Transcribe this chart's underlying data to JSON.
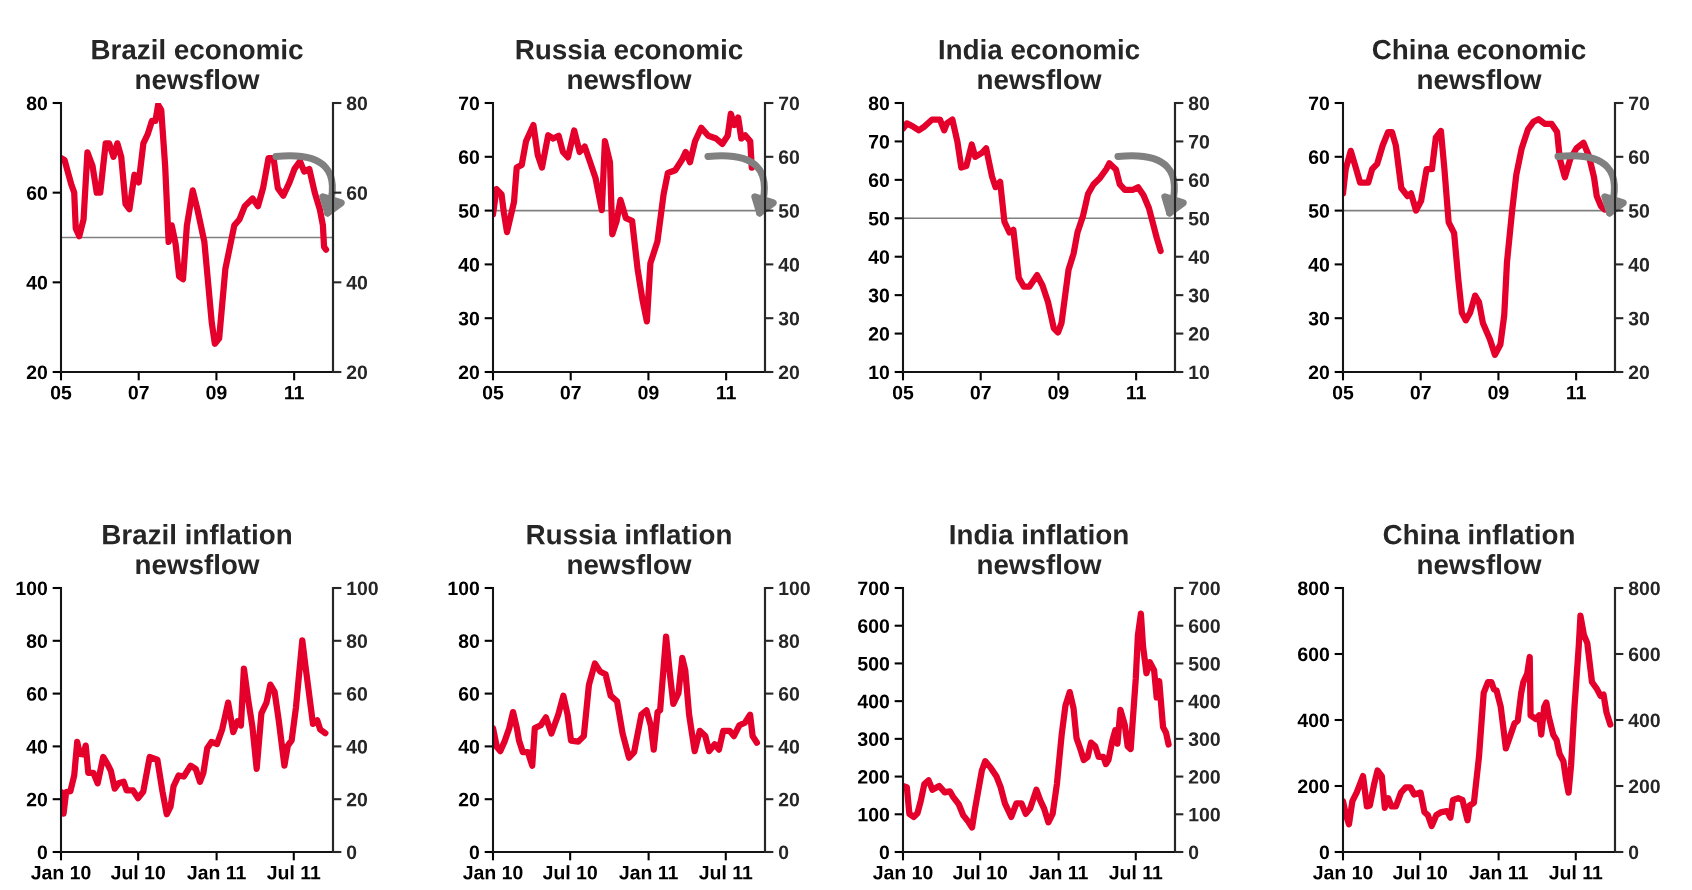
{
  "chart_data": [
    {
      "type": "line",
      "title": "Brazil economic newsflow",
      "x": [
        2005.0,
        2005.09,
        2005.27,
        2005.34,
        2005.38,
        2005.47,
        2005.58,
        2005.68,
        2005.81,
        2005.92,
        2006.01,
        2006.15,
        2006.24,
        2006.35,
        2006.45,
        2006.55,
        2006.66,
        2006.76,
        2006.89,
        2007.0,
        2007.12,
        2007.23,
        2007.34,
        2007.43,
        2007.5,
        2007.58,
        2007.68,
        2007.77,
        2007.85,
        2007.95,
        2008.04,
        2008.14,
        2008.24,
        2008.39,
        2008.51,
        2008.69,
        2008.88,
        2008.96,
        2009.07,
        2009.23,
        2009.46,
        2009.59,
        2009.73,
        2009.93,
        2010.07,
        2010.2,
        2010.34,
        2010.47,
        2010.58,
        2010.72,
        2010.88,
        2011.01,
        2011.15,
        2011.26,
        2011.39,
        2011.53,
        2011.66,
        2011.74,
        2011.77,
        2011.82
      ],
      "series": [
        {
          "color": "#e4002b",
          "values": [
            67.7,
            67.3,
            61.7,
            60,
            52,
            50.3,
            54,
            69,
            66,
            60,
            60,
            71,
            71,
            68,
            71,
            68,
            57.5,
            56.3,
            64,
            62.3,
            71,
            73,
            76,
            76,
            79.6,
            78.4,
            66,
            49,
            52.7,
            48.5,
            41.3,
            40.7,
            52.7,
            60.5,
            56.3,
            49,
            31,
            26.3,
            27.5,
            43,
            52.7,
            54,
            57,
            58.7,
            57,
            61,
            67.7,
            67.7,
            61,
            59.3,
            62.3,
            65.3,
            67,
            64.7,
            65.3,
            60,
            56.3,
            52.7,
            47.9,
            47.3
          ]
        }
      ],
      "xlim": [
        2005,
        2012
      ],
      "xticks": [
        {
          "value": 2005,
          "label": "05"
        },
        {
          "value": 2007,
          "label": "07"
        },
        {
          "value": 2009,
          "label": "09"
        },
        {
          "value": 2011,
          "label": "11"
        }
      ],
      "ylim": [
        20,
        80
      ],
      "yticks": [
        20,
        40,
        60,
        80
      ],
      "y2lim": [
        20,
        80
      ],
      "y2ticks": [
        20,
        40,
        60,
        80
      ],
      "ref_lines": [
        {
          "axis": "y",
          "value": 50,
          "color": "#808080"
        }
      ],
      "legend": false
    },
    {
      "type": "line",
      "title": "Russia economic newsflow",
      "x": [
        2005.0,
        2005.09,
        2005.22,
        2005.28,
        2005.36,
        2005.54,
        2005.61,
        2005.74,
        2005.85,
        2006.04,
        2006.15,
        2006.26,
        2006.42,
        2006.55,
        2006.69,
        2006.8,
        2006.93,
        2007.09,
        2007.23,
        2007.36,
        2007.5,
        2007.64,
        2007.8,
        2007.88,
        2008.01,
        2008.07,
        2008.18,
        2008.28,
        2008.42,
        2008.58,
        2008.72,
        2008.85,
        2008.96,
        2009.05,
        2009.23,
        2009.39,
        2009.5,
        2009.69,
        2009.86,
        2009.96,
        2010.07,
        2010.2,
        2010.36,
        2010.54,
        2010.74,
        2010.9,
        2011.04,
        2011.12,
        2011.21,
        2011.31,
        2011.39,
        2011.49,
        2011.62,
        2011.66
      ],
      "series": [
        {
          "color": "#e4002b",
          "values": [
            49.3,
            54,
            53,
            49.6,
            46,
            51.6,
            58,
            58.5,
            62.9,
            65.9,
            60.4,
            58,
            64,
            63.4,
            63.9,
            60.9,
            59.9,
            64.9,
            60.9,
            61.9,
            59,
            56,
            50.1,
            62.9,
            59,
            45.6,
            48,
            52,
            48.6,
            48.1,
            39.2,
            33.3,
            29.4,
            40.2,
            44.2,
            53,
            57,
            57.5,
            59.4,
            60.9,
            59,
            62.9,
            65.4,
            63.9,
            63.4,
            62.4,
            63.9,
            68,
            65.9,
            67.3,
            63.4,
            64,
            62.9,
            58
          ]
        }
      ],
      "xlim": [
        2005,
        2012
      ],
      "xticks": [
        {
          "value": 2005,
          "label": "05"
        },
        {
          "value": 2007,
          "label": "07"
        },
        {
          "value": 2009,
          "label": "09"
        },
        {
          "value": 2011,
          "label": "11"
        }
      ],
      "ylim": [
        20,
        70
      ],
      "yticks": [
        20,
        30,
        40,
        50,
        60,
        70
      ],
      "y2lim": [
        20,
        70
      ],
      "y2ticks": [
        20,
        30,
        40,
        50,
        60,
        70
      ],
      "ref_lines": [
        {
          "axis": "y",
          "value": 50,
          "color": "#808080"
        }
      ],
      "legend": false
    },
    {
      "type": "line",
      "title": "India economic newsflow",
      "x": [
        2005.0,
        2005.1,
        2005.27,
        2005.41,
        2005.54,
        2005.75,
        2005.95,
        2006.06,
        2006.13,
        2006.27,
        2006.4,
        2006.5,
        2006.63,
        2006.77,
        2006.86,
        2007.04,
        2007.14,
        2007.29,
        2007.38,
        2007.5,
        2007.61,
        2007.74,
        2007.84,
        2007.98,
        2008.11,
        2008.25,
        2008.45,
        2008.59,
        2008.73,
        2008.88,
        2008.99,
        2009.08,
        2009.26,
        2009.39,
        2009.49,
        2009.63,
        2009.76,
        2009.9,
        2010.07,
        2010.24,
        2010.31,
        2010.48,
        2010.58,
        2010.71,
        2010.92,
        2011.05,
        2011.19,
        2011.33,
        2011.44,
        2011.53,
        2011.63
      ],
      "series": [
        {
          "color": "#e4002b",
          "values": [
            73.3,
            74.7,
            73.8,
            72.9,
            73.8,
            75.7,
            75.7,
            72.9,
            74.7,
            75.7,
            69.9,
            63.2,
            63.6,
            69.2,
            66,
            67.1,
            68.2,
            60.9,
            58.1,
            59.5,
            49.1,
            46.3,
            47,
            34.5,
            32.2,
            32.2,
            35.2,
            32.5,
            28.3,
            21.4,
            20.3,
            22.8,
            36.6,
            40.8,
            46.3,
            50.5,
            56.3,
            58.8,
            60.5,
            62.9,
            64.3,
            62.7,
            58.8,
            57.4,
            57.4,
            58.1,
            56,
            52.6,
            48.4,
            44.9,
            41.5
          ]
        }
      ],
      "xlim": [
        2005,
        2012
      ],
      "xticks": [
        {
          "value": 2005,
          "label": "05"
        },
        {
          "value": 2007,
          "label": "07"
        },
        {
          "value": 2009,
          "label": "09"
        },
        {
          "value": 2011,
          "label": "11"
        }
      ],
      "ylim": [
        10,
        80
      ],
      "yticks": [
        10,
        20,
        30,
        40,
        50,
        60,
        70,
        80
      ],
      "y2lim": [
        10,
        80
      ],
      "y2ticks": [
        10,
        20,
        30,
        40,
        50,
        60,
        70,
        80
      ],
      "ref_lines": [
        {
          "axis": "y",
          "value": 50,
          "color": "#808080"
        }
      ],
      "legend": false
    },
    {
      "type": "line",
      "title": "China economic newsflow",
      "x": [
        2005.0,
        2005.07,
        2005.2,
        2005.34,
        2005.44,
        2005.65,
        2005.75,
        2005.88,
        2006.02,
        2006.16,
        2006.26,
        2006.36,
        2006.5,
        2006.66,
        2006.75,
        2006.88,
        2007.01,
        2007.15,
        2007.29,
        2007.39,
        2007.52,
        2007.61,
        2007.72,
        2007.86,
        2007.97,
        2008.06,
        2008.16,
        2008.27,
        2008.4,
        2008.5,
        2008.6,
        2008.78,
        2008.91,
        2009.05,
        2009.15,
        2009.22,
        2009.35,
        2009.46,
        2009.6,
        2009.76,
        2009.9,
        2010.03,
        2010.2,
        2010.37,
        2010.51,
        2010.58,
        2010.71,
        2010.85,
        2011.01,
        2011.19,
        2011.33,
        2011.46,
        2011.53,
        2011.64,
        2011.73
      ],
      "series": [
        {
          "color": "#e4002b",
          "values": [
            53.2,
            57.7,
            61.1,
            57.7,
            55.2,
            55.2,
            57.7,
            58.7,
            62.1,
            64.6,
            64.6,
            62.1,
            54.2,
            52.7,
            53.2,
            50,
            51.8,
            57.7,
            57.7,
            63.6,
            64.8,
            57.7,
            47.8,
            45.8,
            37,
            31,
            29.6,
            31,
            34.2,
            33,
            29.1,
            26.1,
            23.2,
            25.1,
            30.6,
            40.4,
            49.8,
            56.7,
            61.6,
            65.1,
            66.5,
            67,
            66.1,
            66.1,
            64.6,
            59.6,
            56.2,
            59.6,
            61.6,
            62.6,
            60.1,
            56.2,
            52.7,
            50.8,
            50.2
          ]
        }
      ],
      "xlim": [
        2005,
        2012
      ],
      "xticks": [
        {
          "value": 2005,
          "label": "05"
        },
        {
          "value": 2007,
          "label": "07"
        },
        {
          "value": 2009,
          "label": "09"
        },
        {
          "value": 2011,
          "label": "11"
        }
      ],
      "ylim": [
        20,
        70
      ],
      "yticks": [
        20,
        30,
        40,
        50,
        60,
        70
      ],
      "y2lim": [
        20,
        70
      ],
      "y2ticks": [
        20,
        30,
        40,
        50,
        60,
        70
      ],
      "ref_lines": [
        {
          "axis": "y",
          "value": 50,
          "color": "#808080"
        }
      ],
      "legend": false
    },
    {
      "type": "line",
      "title": "Brazil inflation newsflow",
      "x": [
        "2010-01-01",
        "2010-01-07",
        "2010-01-13",
        "2010-01-23",
        "2010-02-01",
        "2010-02-08",
        "2010-02-14",
        "2010-02-22",
        "2010-02-28",
        "2010-03-06",
        "2010-03-18",
        "2010-03-28",
        "2010-04-10",
        "2010-04-21",
        "2010-04-28",
        "2010-05-07",
        "2010-05-16",
        "2010-05-28",
        "2010-06-04",
        "2010-06-19",
        "2010-07-01",
        "2010-07-13",
        "2010-07-28",
        "2010-08-15",
        "2010-08-27",
        "2010-09-06",
        "2010-09-15",
        "2010-09-22",
        "2010-10-04",
        "2010-10-16",
        "2010-11-01",
        "2010-11-13",
        "2010-11-23",
        "2010-12-01",
        "2010-12-10",
        "2010-12-20",
        "2011-01-02",
        "2011-01-14",
        "2011-01-28",
        "2011-02-09",
        "2011-02-19",
        "2011-02-27",
        "2011-03-06",
        "2011-03-16",
        "2011-03-26",
        "2011-04-05",
        "2011-04-16",
        "2011-04-28",
        "2011-05-07",
        "2011-05-17",
        "2011-05-27",
        "2011-06-09",
        "2011-06-17",
        "2011-06-26",
        "2011-07-06",
        "2011-07-21",
        "2011-07-28",
        "2011-08-15",
        "2011-08-25",
        "2011-09-01",
        "2011-09-13"
      ],
      "series": [
        {
          "color": "#e4002b",
          "values": [
            22.7,
            14.5,
            22.7,
            23,
            29,
            41.7,
            37.2,
            37,
            40.3,
            30,
            30,
            26,
            36,
            33,
            30.7,
            24,
            26,
            26.6,
            23.3,
            23.3,
            20.4,
            22.9,
            36,
            35,
            22.9,
            14.3,
            17.2,
            24.9,
            29,
            28.6,
            32.7,
            31.5,
            26.6,
            30,
            39.3,
            41.7,
            40.9,
            46.4,
            56.6,
            45.4,
            49.5,
            47.9,
            69.5,
            57.7,
            47.4,
            31.5,
            52.5,
            56.6,
            63.4,
            60.7,
            49.5,
            32.7,
            40.3,
            42.3,
            54.6,
            80.2,
            71,
            48.5,
            49.9,
            46.4,
            45
          ]
        }
      ],
      "xlim": [
        "2010-01-01",
        "2011-10-01"
      ],
      "xticks": [
        {
          "value": "2010-01-01",
          "label": "Jan 10"
        },
        {
          "value": "2010-07-01",
          "label": "Jul 10"
        },
        {
          "value": "2011-01-01",
          "label": "Jan 11"
        },
        {
          "value": "2011-07-01",
          "label": "Jul 11"
        }
      ],
      "ylim": [
        0,
        100
      ],
      "yticks": [
        0,
        20,
        40,
        60,
        80,
        100
      ],
      "y2lim": [
        0,
        100
      ],
      "y2ticks": [
        0,
        20,
        40,
        60,
        80,
        100
      ],
      "legend": false
    },
    {
      "type": "line",
      "title": "Russia inflation newsflow",
      "x": [
        "2010-01-01",
        "2010-01-10",
        "2010-01-18",
        "2010-01-28",
        "2010-02-08",
        "2010-02-17",
        "2010-02-26",
        "2010-03-03",
        "2010-03-12",
        "2010-03-24",
        "2010-04-03",
        "2010-04-09",
        "2010-04-23",
        "2010-05-05",
        "2010-05-18",
        "2010-06-03",
        "2010-06-15",
        "2010-06-25",
        "2010-07-03",
        "2010-07-20",
        "2010-08-02",
        "2010-08-14",
        "2010-08-28",
        "2010-09-09",
        "2010-09-22",
        "2010-10-04",
        "2010-10-19",
        "2010-11-01",
        "2010-11-16",
        "2010-11-28",
        "2010-12-15",
        "2010-12-27",
        "2011-01-06",
        "2011-01-13",
        "2011-01-22",
        "2011-01-28",
        "2011-02-11",
        "2011-02-20",
        "2011-02-28",
        "2011-03-12",
        "2011-03-21",
        "2011-03-28",
        "2011-04-06",
        "2011-04-19",
        "2011-05-01",
        "2011-05-14",
        "2011-05-23",
        "2011-06-05",
        "2011-06-15",
        "2011-06-25",
        "2011-07-10",
        "2011-07-20",
        "2011-08-02",
        "2011-08-15",
        "2011-08-27",
        "2011-09-02",
        "2011-09-12"
      ],
      "series": [
        {
          "color": "#e4002b",
          "values": [
            46.9,
            39.8,
            38.2,
            41.8,
            46.9,
            53,
            46.9,
            42.2,
            37.8,
            37.8,
            32.7,
            46.9,
            48,
            51,
            44.9,
            52,
            59.2,
            52,
            42.2,
            41.8,
            43.9,
            63.3,
            71.4,
            68.4,
            67.3,
            59.2,
            57.1,
            44.9,
            35.7,
            37.8,
            52,
            53.7,
            48,
            38.8,
            53,
            53.7,
            81.6,
            67.3,
            56.1,
            60.2,
            73.5,
            68.8,
            52,
            38.2,
            45.9,
            43.9,
            38.2,
            40.8,
            38.8,
            45.9,
            45.9,
            43.9,
            48,
            49,
            52,
            43.9,
            41.4
          ]
        }
      ],
      "xlim": [
        "2010-01-01",
        "2011-10-01"
      ],
      "xticks": [
        {
          "value": "2010-01-01",
          "label": "Jan 10"
        },
        {
          "value": "2010-07-01",
          "label": "Jul 10"
        },
        {
          "value": "2011-01-01",
          "label": "Jan 11"
        },
        {
          "value": "2011-07-01",
          "label": "Jul 11"
        }
      ],
      "ylim": [
        0,
        100
      ],
      "yticks": [
        0,
        20,
        40,
        60,
        80,
        100
      ],
      "y2lim": [
        0,
        100
      ],
      "y2ticks": [
        0,
        20,
        40,
        60,
        80,
        100
      ],
      "legend": false
    },
    {
      "type": "line",
      "title": "India inflation newsflow",
      "x": [
        "2010-01-01",
        "2010-01-10",
        "2010-01-16",
        "2010-01-26",
        "2010-02-04",
        "2010-02-12",
        "2010-02-20",
        "2010-03-02",
        "2010-03-11",
        "2010-03-27",
        "2010-04-09",
        "2010-04-21",
        "2010-04-28",
        "2010-05-12",
        "2010-05-22",
        "2010-06-04",
        "2010-06-12",
        "2010-06-19",
        "2010-06-28",
        "2010-07-05",
        "2010-07-13",
        "2010-07-26",
        "2010-08-08",
        "2010-08-18",
        "2010-08-28",
        "2010-09-12",
        "2010-09-24",
        "2010-10-06",
        "2010-10-16",
        "2010-10-26",
        "2010-11-10",
        "2010-11-19",
        "2010-11-28",
        "2010-12-08",
        "2010-12-18",
        "2010-12-28",
        "2011-01-08",
        "2011-01-17",
        "2011-01-27",
        "2011-02-05",
        "2011-02-12",
        "2011-02-21",
        "2011-03-01",
        "2011-03-10",
        "2011-03-18",
        "2011-03-28",
        "2011-04-05",
        "2011-04-16",
        "2011-04-22",
        "2011-04-28",
        "2011-05-07",
        "2011-05-14",
        "2011-05-19",
        "2011-05-26",
        "2011-06-05",
        "2011-06-12",
        "2011-06-19",
        "2011-06-26",
        "2011-07-01",
        "2011-07-06",
        "2011-07-13",
        "2011-07-18",
        "2011-07-26",
        "2011-08-03",
        "2011-08-13",
        "2011-08-19",
        "2011-08-25",
        "2011-09-03",
        "2011-09-10",
        "2011-09-16"
      ],
      "series": [
        {
          "color": "#e4002b",
          "values": [
            175,
            172,
            101,
            93,
            103,
            137,
            180,
            190,
            165,
            175,
            158,
            161,
            147,
            126,
            98,
            79,
            65,
            115,
            172,
            216,
            241,
            223,
            201,
            172,
            129,
            93,
            129,
            129,
            101,
            115,
            165,
            137,
            115,
            79,
            101,
            180,
            309,
            388,
            424,
            381,
            302,
            273,
            244,
            252,
            290,
            280,
            252,
            252,
            233,
            244,
            295,
            323,
            287,
            377,
            338,
            280,
            273,
            381,
            460,
            575,
            632,
            546,
            474,
            503,
            482,
            410,
            453,
            331,
            316,
            285
          ]
        }
      ],
      "xlim": [
        "2010-01-01",
        "2011-10-01"
      ],
      "xticks": [
        {
          "value": "2010-01-01",
          "label": "Jan 10"
        },
        {
          "value": "2010-07-01",
          "label": "Jul 10"
        },
        {
          "value": "2011-01-01",
          "label": "Jan 11"
        },
        {
          "value": "2011-07-01",
          "label": "Jul 11"
        }
      ],
      "ylim": [
        0,
        700
      ],
      "yticks": [
        0,
        100,
        200,
        300,
        400,
        500,
        600,
        700
      ],
      "y2lim": [
        0,
        700
      ],
      "y2ticks": [
        0,
        100,
        200,
        300,
        400,
        500,
        600,
        700
      ],
      "legend": false
    },
    {
      "type": "line",
      "title": "China inflation newsflow",
      "x": [
        "2010-01-01",
        "2010-01-08",
        "2010-01-15",
        "2010-01-23",
        "2010-02-02",
        "2010-02-12",
        "2010-02-17",
        "2010-02-26",
        "2010-03-05",
        "2010-03-15",
        "2010-03-23",
        "2010-04-02",
        "2010-04-09",
        "2010-04-17",
        "2010-04-25",
        "2010-05-05",
        "2010-05-17",
        "2010-05-28",
        "2010-06-08",
        "2010-06-17",
        "2010-07-02",
        "2010-07-11",
        "2010-07-19",
        "2010-07-28",
        "2010-08-08",
        "2010-08-20",
        "2010-09-02",
        "2010-09-10",
        "2010-09-16",
        "2010-09-28",
        "2010-10-08",
        "2010-10-20",
        "2010-10-25",
        "2010-11-04",
        "2010-11-16",
        "2010-11-27",
        "2010-12-07",
        "2010-12-15",
        "2010-12-21",
        "2010-12-27",
        "2011-01-06",
        "2011-01-18",
        "2011-01-27",
        "2011-02-07",
        "2011-02-15",
        "2011-02-23",
        "2011-02-28",
        "2011-03-09",
        "2011-03-15",
        "2011-03-17",
        "2011-03-29",
        "2011-04-06",
        "2011-04-11",
        "2011-04-18",
        "2011-04-23",
        "2011-04-28",
        "2011-05-09",
        "2011-05-17",
        "2011-05-24",
        "2011-06-02",
        "2011-06-08",
        "2011-06-14",
        "2011-06-20",
        "2011-06-28",
        "2011-07-08",
        "2011-07-12",
        "2011-07-20",
        "2011-07-28",
        "2011-08-08",
        "2011-08-20",
        "2011-08-28",
        "2011-09-04",
        "2011-09-11",
        "2011-09-20"
      ],
      "series": [
        {
          "color": "#e4002b",
          "values": [
            154,
            112,
            84,
            154,
            180,
            213,
            230,
            138,
            141,
            205,
            247,
            230,
            134,
            163,
            138,
            138,
            180,
            196,
            196,
            174,
            180,
            121,
            112,
            79,
            112,
            121,
            124,
            104,
            158,
            163,
            158,
            96,
            141,
            149,
            289,
            482,
            515,
            515,
            493,
            490,
            440,
            314,
            347,
            389,
            398,
            482,
            515,
            540,
            591,
            414,
            403,
            414,
            356,
            440,
            453,
            414,
            356,
            339,
            297,
            275,
            221,
            180,
            263,
            440,
            624,
            716,
            658,
            633,
            515,
            493,
            473,
            477,
            423,
            386
          ]
        }
      ],
      "xlim": [
        "2010-01-01",
        "2011-10-01"
      ],
      "xticks": [
        {
          "value": "2010-01-01",
          "label": "Jan 10"
        },
        {
          "value": "2010-07-01",
          "label": "Jul 10"
        },
        {
          "value": "2011-01-01",
          "label": "Jan 11"
        },
        {
          "value": "2011-07-01",
          "label": "Jul 11"
        }
      ],
      "ylim": [
        0,
        800
      ],
      "yticks": [
        0,
        200,
        400,
        600,
        800
      ],
      "y2lim": [
        0,
        800
      ],
      "y2ticks": [
        0,
        200,
        400,
        600,
        800
      ],
      "legend": false
    }
  ]
}
